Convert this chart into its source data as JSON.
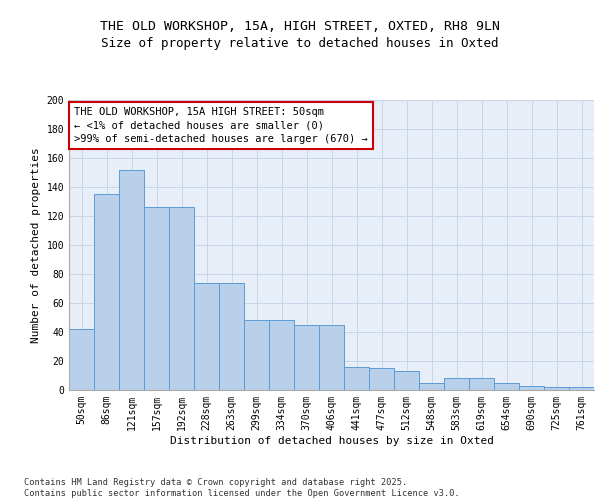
{
  "title_line1": "THE OLD WORKSHOP, 15A, HIGH STREET, OXTED, RH8 9LN",
  "title_line2": "Size of property relative to detached houses in Oxted",
  "xlabel": "Distribution of detached houses by size in Oxted",
  "ylabel": "Number of detached properties",
  "categories": [
    "50sqm",
    "86sqm",
    "121sqm",
    "157sqm",
    "192sqm",
    "228sqm",
    "263sqm",
    "299sqm",
    "334sqm",
    "370sqm",
    "406sqm",
    "441sqm",
    "477sqm",
    "512sqm",
    "548sqm",
    "583sqm",
    "619sqm",
    "654sqm",
    "690sqm",
    "725sqm",
    "761sqm"
  ],
  "values": [
    42,
    135,
    152,
    126,
    126,
    74,
    74,
    48,
    48,
    45,
    45,
    16,
    15,
    13,
    5,
    8,
    8,
    5,
    3,
    2,
    2
  ],
  "bar_color": "#b8d0ea",
  "bar_edge_color": "#5b9bd5",
  "ylim": [
    0,
    200
  ],
  "yticks": [
    0,
    20,
    40,
    60,
    80,
    100,
    120,
    140,
    160,
    180,
    200
  ],
  "annotation_box_text": "THE OLD WORKSHOP, 15A HIGH STREET: 50sqm\n← <1% of detached houses are smaller (0)\n>99% of semi-detached houses are larger (670) →",
  "annotation_box_color": "#ff0000",
  "grid_color": "#c8d4e8",
  "background_color": "#e8eef8",
  "footer_text": "Contains HM Land Registry data © Crown copyright and database right 2025.\nContains public sector information licensed under the Open Government Licence v3.0.",
  "title_fontsize": 9.5,
  "subtitle_fontsize": 9,
  "label_fontsize": 8,
  "tick_fontsize": 7,
  "annotation_fontsize": 7.5
}
